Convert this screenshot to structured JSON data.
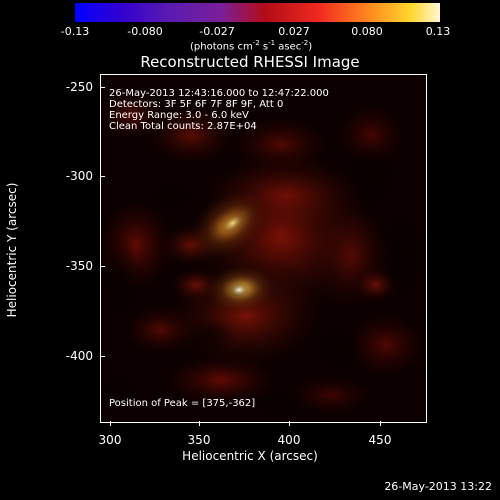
{
  "colorbar": {
    "ticks": [
      "-0.13",
      "-0.080",
      "-0.027",
      "0.027",
      "0.080",
      "0.13"
    ],
    "units_parts": [
      "(photons cm",
      "-2",
      " s",
      "-1",
      " asec",
      "-2",
      ")"
    ]
  },
  "title": "Reconstructed RHESSI Image",
  "annotations": {
    "line1": "26-May-2013 12:43:16.000 to 12:47:22.000",
    "line2": "Detectors: 3F 5F 6F 7F 8F 9F, Att 0",
    "line3": "Energy Range: 3.0 - 6.0 keV",
    "line4": "Clean     Total counts: 2.87E+04",
    "peak": "Position of Peak = [375,-362]"
  },
  "axes": {
    "xlabel": "Heliocentric X (arcsec)",
    "ylabel": "Heliocentric Y (arcsec)",
    "xticks": [
      "300",
      "350",
      "400",
      "450"
    ],
    "yticks": [
      "-250",
      "-300",
      "-350",
      "-400"
    ],
    "xlim": [
      282,
      473
    ],
    "ylim": [
      -436,
      -240
    ]
  },
  "footer": {
    "timestamp": "26-May-2013 13:22"
  },
  "colors": {
    "background": "#000000",
    "text": "#ffffff",
    "peak": "#ffffff",
    "hot": "#f5df28",
    "orange": "#f48a1f",
    "red": "#b61d13"
  }
}
